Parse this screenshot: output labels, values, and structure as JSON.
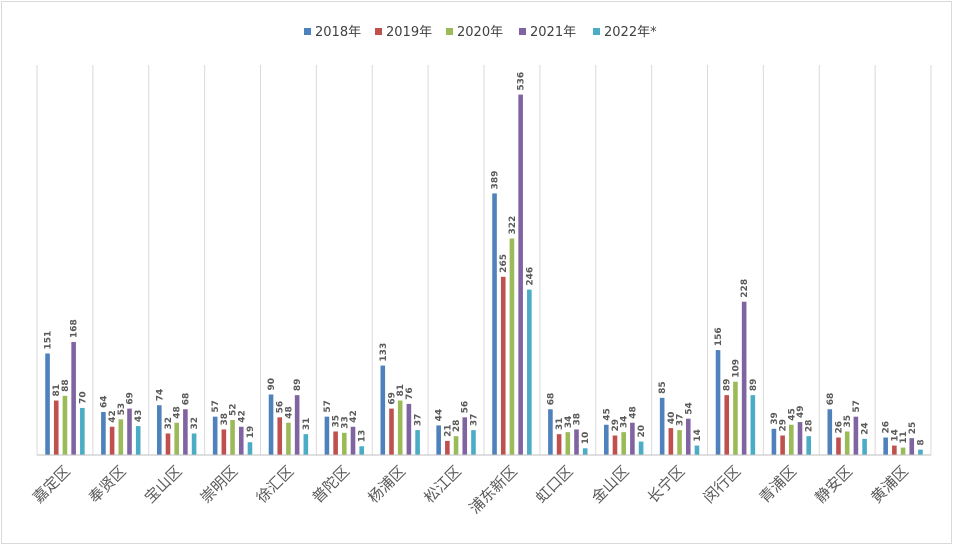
{
  "chart_data": {
    "type": "bar",
    "title": "",
    "xlabel": "",
    "ylabel": "",
    "ylim": [
      0,
      580
    ],
    "grid": "vertical-category-dividers",
    "legend_position": "top-center",
    "categories": [
      "嘉定区",
      "奉贤区",
      "宝山区",
      "崇明区",
      "徐汇区",
      "普陀区",
      "杨浦区",
      "松江区",
      "浦东新区",
      "虹口区",
      "金山区",
      "长宁区",
      "闵行区",
      "青浦区",
      "静安区",
      "黄浦区"
    ],
    "series": [
      {
        "name": "2018年",
        "color": "#4f81bd",
        "values": [
          151,
          64,
          74,
          57,
          90,
          57,
          133,
          44,
          389,
          68,
          45,
          85,
          156,
          39,
          68,
          26
        ]
      },
      {
        "name": "2019年",
        "color": "#c0504d",
        "values": [
          81,
          42,
          32,
          38,
          56,
          35,
          69,
          21,
          265,
          31,
          29,
          40,
          89,
          29,
          26,
          14
        ]
      },
      {
        "name": "2020年",
        "color": "#9bbb59",
        "values": [
          88,
          53,
          48,
          52,
          48,
          33,
          81,
          28,
          322,
          34,
          34,
          37,
          109,
          45,
          35,
          11
        ]
      },
      {
        "name": "2021年",
        "color": "#8064a2",
        "values": [
          168,
          69,
          68,
          42,
          89,
          42,
          76,
          56,
          536,
          38,
          48,
          54,
          228,
          49,
          57,
          25
        ]
      },
      {
        "name": "2022年*",
        "color": "#4bacc6",
        "values": [
          70,
          43,
          32,
          19,
          31,
          13,
          37,
          37,
          246,
          10,
          20,
          14,
          89,
          28,
          24,
          8
        ]
      }
    ]
  }
}
